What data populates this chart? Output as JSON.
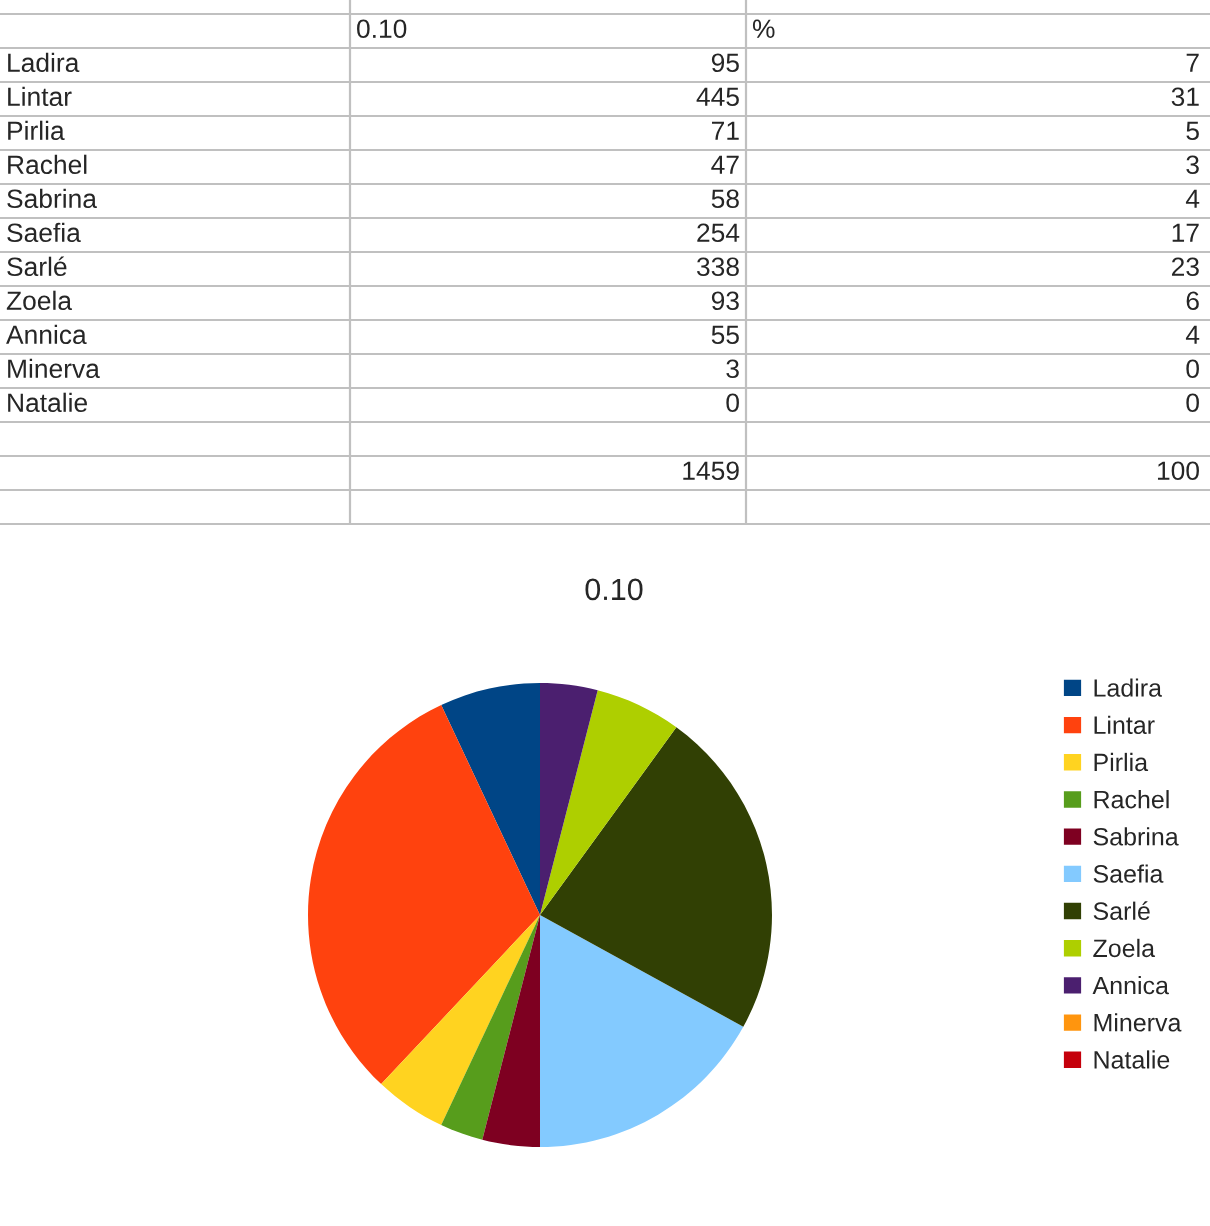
{
  "chart_data": {
    "type": "pie",
    "title": "0.10",
    "categories": [
      "Ladira",
      "Lintar",
      "Pirlia",
      "Rachel",
      "Sabrina",
      "Saefia",
      "Sarlé",
      "Zoela",
      "Annica",
      "Minerva",
      "Natalie"
    ],
    "values": [
      7,
      31,
      5,
      3,
      4,
      17,
      23,
      6,
      4,
      0,
      0
    ],
    "colors": [
      "#004586",
      "#ff420e",
      "#ffd320",
      "#579d1c",
      "#7e0021",
      "#83caff",
      "#314004",
      "#aecf00",
      "#4b1f6f",
      "#ff950e",
      "#c5000b"
    ],
    "annotations": [
      "%",
      "95",
      "7",
      "445",
      "31",
      "71",
      "5",
      "47",
      "3",
      "58",
      "4",
      "254",
      "17",
      "338",
      "23",
      "93",
      "6",
      "55",
      "4",
      "3",
      "0",
      "0",
      "0",
      "1459",
      "100"
    ],
    "legend": "right"
  }
}
